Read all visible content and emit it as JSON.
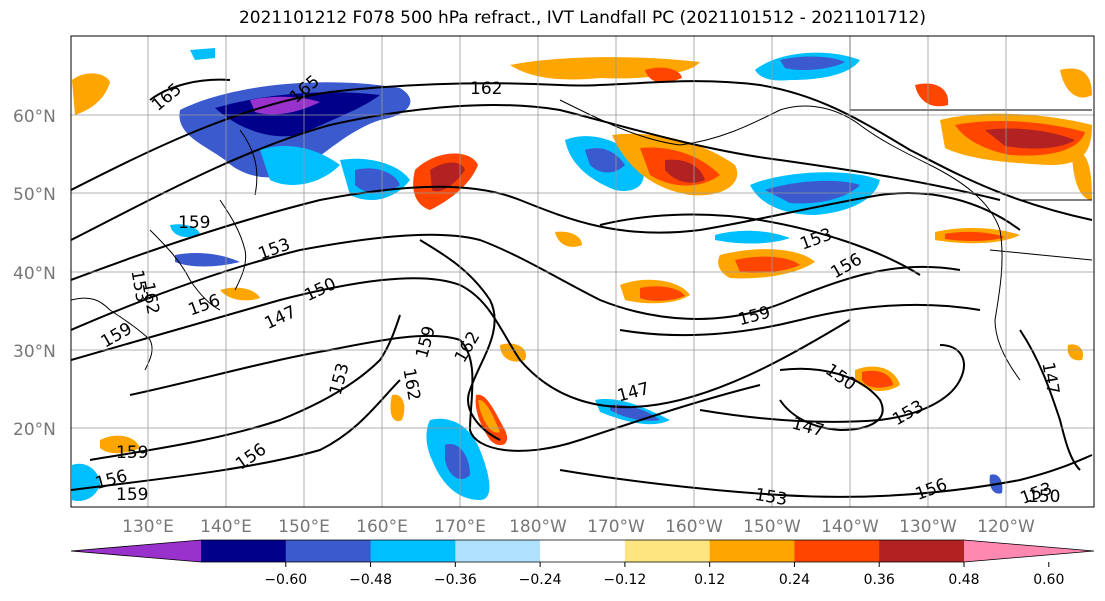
{
  "title": "2021101212 F078 500 hPa refract., IVT Landfall PC (2021101512 - 2021101712)",
  "lat_labels": [
    "60°N",
    "50°N",
    "40°N",
    "30°N",
    "20°N"
  ],
  "lon_labels": [
    "130°E",
    "140°E",
    "150°E",
    "160°E",
    "170°E",
    "180°W",
    "170°W",
    "160°W",
    "150°W",
    "140°W",
    "130°W",
    "120°W"
  ],
  "contour_labels": [
    "165",
    "165",
    "162",
    "159",
    "153",
    "153",
    "162",
    "156",
    "159",
    "150",
    "147",
    "159",
    "162",
    "153",
    "162",
    "153",
    "156",
    "159",
    "147",
    "150",
    "153",
    "147",
    "156",
    "159",
    "156",
    "159",
    "153",
    "156",
    "153",
    "150",
    "147"
  ],
  "colorbar": {
    "ticks": [
      "−0.60",
      "−0.48",
      "−0.36",
      "−0.24",
      "−0.12",
      "0.12",
      "0.24",
      "0.36",
      "0.48",
      "0.60"
    ],
    "colors": [
      "#9932cc",
      "#00008b",
      "#3a5acd",
      "#00bfff",
      "#b0e2ff",
      "#ffffff",
      "#ffe57f",
      "#ffa500",
      "#ff4500",
      "#b22222",
      "#ff88b0"
    ]
  }
}
